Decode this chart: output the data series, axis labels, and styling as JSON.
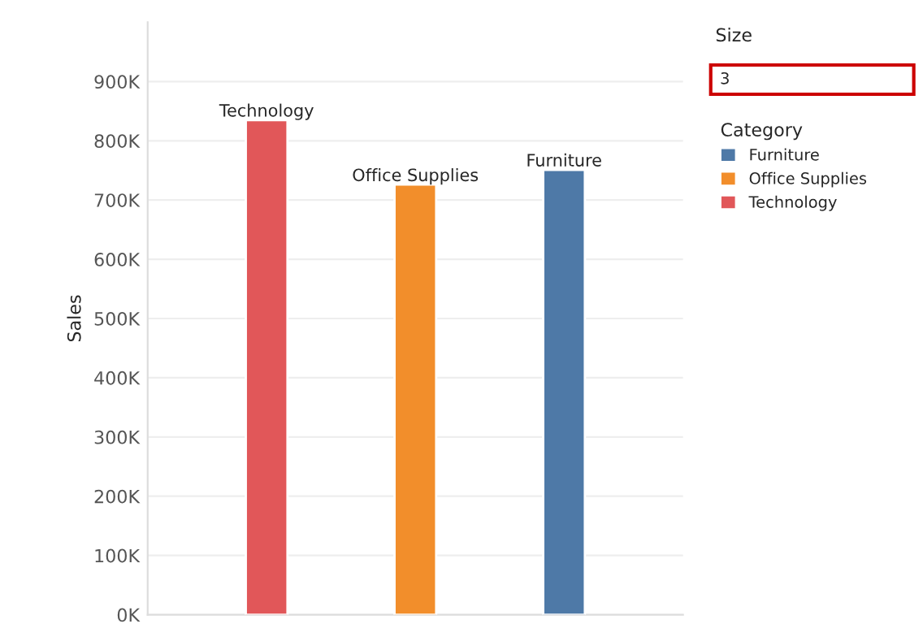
{
  "chart_data": {
    "type": "bar",
    "categories": [
      "Technology",
      "Office Supplies",
      "Furniture"
    ],
    "series": [
      {
        "name": "Furniture",
        "color": "#4e79a7",
        "values": [
          null,
          null,
          751000
        ]
      },
      {
        "name": "Office Supplies",
        "color": "#f28e2b",
        "values": [
          null,
          726000,
          null
        ]
      },
      {
        "name": "Technology",
        "color": "#e15759",
        "values": [
          835000,
          null,
          null
        ]
      }
    ],
    "ylabel": "Sales",
    "ylim": [
      0,
      1000000
    ],
    "yticks": [
      {
        "value": 0,
        "label": "0K"
      },
      {
        "value": 100000,
        "label": "100K"
      },
      {
        "value": 200000,
        "label": "200K"
      },
      {
        "value": 300000,
        "label": "300K"
      },
      {
        "value": 400000,
        "label": "400K"
      },
      {
        "value": 500000,
        "label": "500K"
      },
      {
        "value": 600000,
        "label": "600K"
      },
      {
        "value": 700000,
        "label": "700K"
      },
      {
        "value": 800000,
        "label": "800K"
      },
      {
        "value": 900000,
        "label": "900K"
      }
    ],
    "tick_labels": "y",
    "grid": "y",
    "legend": "right",
    "legend_title": "Category",
    "annotations": [
      "Size",
      "3"
    ]
  }
}
